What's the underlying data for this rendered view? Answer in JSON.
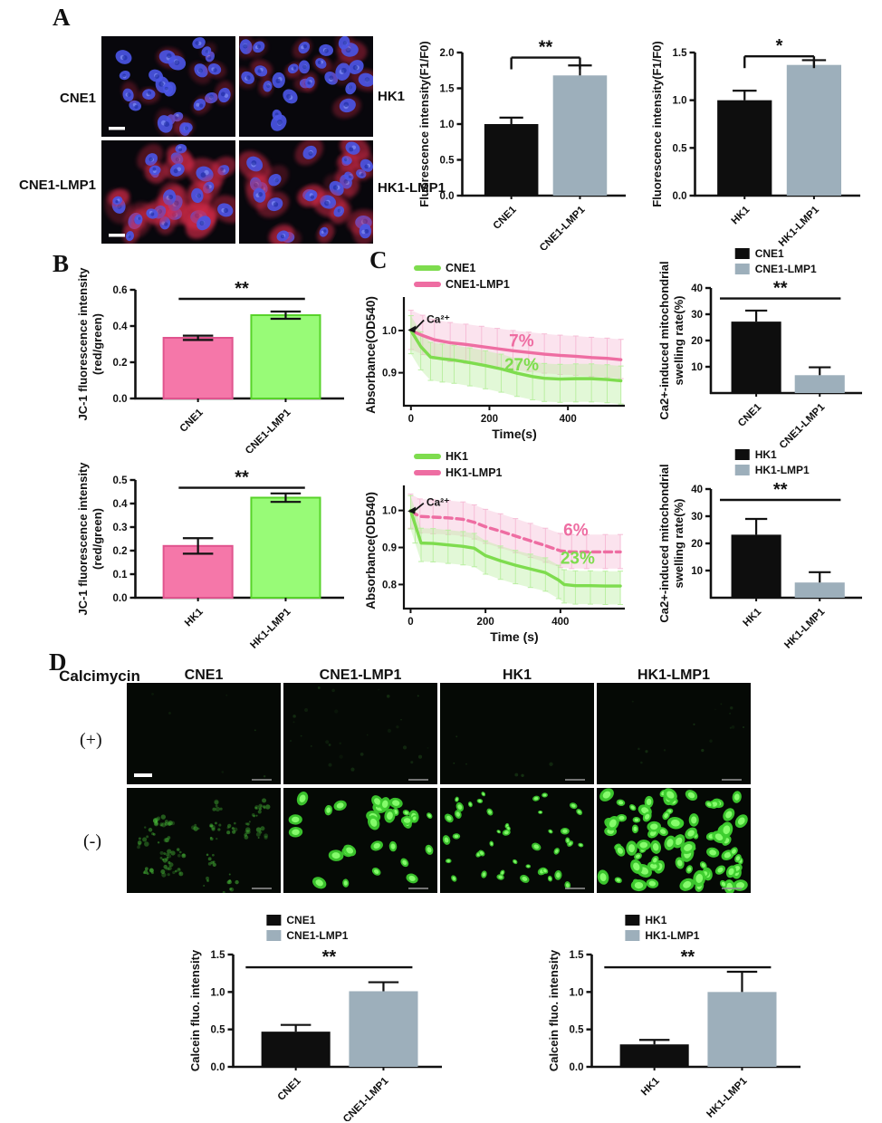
{
  "colors": {
    "black": "#0e0e0e",
    "gray": "#9dafbb",
    "pink_bar": "#f577a9",
    "pink_bar_border": "#e0548e",
    "green_bar": "#98fb77",
    "green_bar_border": "#58d32a",
    "green": "#7edc4e",
    "pink": "#ee6da2",
    "band_green": "#b9efa0",
    "band_pink": "#f6bcd6",
    "micro_blue": "#4a55e4",
    "micro_red": "#d62949",
    "fluo_green": "#4ce93b"
  },
  "panelA": {
    "label": "A",
    "micrographs": [
      {
        "label": "CNE1",
        "red_level": 0.35,
        "seed": 11,
        "scalebar": true
      },
      {
        "label": "HK1",
        "red_level": 0.45,
        "seed": 22,
        "scalebar": false
      },
      {
        "label": "CNE1-LMP1",
        "red_level": 0.9,
        "seed": 33,
        "scalebar": true
      },
      {
        "label": "HK1-LMP1",
        "red_level": 0.8,
        "seed": 44,
        "scalebar": false
      }
    ]
  },
  "panelB": {
    "label": "B"
  },
  "panelC": {
    "label": "C"
  },
  "panelD": {
    "label": "D",
    "row_header": "Calcimycin",
    "columns": [
      "CNE1",
      "CNE1-LMP1",
      "HK1",
      "HK1-LMP1"
    ],
    "rows": [
      {
        "label": "(+)",
        "cells": [
          {
            "mode": "plus",
            "count": 2,
            "seed": 51,
            "scalebar": true
          },
          {
            "mode": "plus",
            "count": 9,
            "seed": 52,
            "scalebar": false
          },
          {
            "mode": "plus",
            "count": 2,
            "seed": 53,
            "scalebar": false
          },
          {
            "mode": "plus",
            "count": 5,
            "seed": 54,
            "scalebar": false
          }
        ]
      },
      {
        "label": "(-)",
        "cells": [
          {
            "mode": "minus",
            "count": 26,
            "bright": 0.45,
            "size": 0.8,
            "cluster": true,
            "seed": 61,
            "scalebar": false
          },
          {
            "mode": "minus",
            "count": 30,
            "bright": 0.95,
            "size": 1.15,
            "cluster": false,
            "seed": 62,
            "scalebar": false
          },
          {
            "mode": "minus",
            "count": 42,
            "bright": 0.85,
            "size": 0.75,
            "cluster": false,
            "seed": 63,
            "scalebar": false
          },
          {
            "mode": "minus",
            "count": 82,
            "bright": 1.0,
            "size": 1.25,
            "cluster": false,
            "seed": 64,
            "scalebar": false
          }
        ]
      }
    ]
  },
  "chart_data": [
    {
      "id": "chartA1",
      "type": "bar",
      "categories": [
        "CNE1",
        "CNE1-LMP1"
      ],
      "values": [
        1.0,
        1.68
      ],
      "errors": [
        0.09,
        0.14
      ],
      "bar_colors": [
        "black",
        "gray"
      ],
      "ylabel": [
        "Fluorescence intensity(F1/F0)"
      ],
      "yticks": [
        0,
        0.5,
        1.0,
        1.5,
        2.0
      ],
      "ytick_labels": [
        "0.0",
        "0.5",
        "1.0",
        "1.5",
        "2.0"
      ],
      "ylim": [
        0,
        2.0
      ],
      "sig": "**",
      "sig_y": 1.93,
      "sig_style": "endcaps"
    },
    {
      "id": "chartA2",
      "type": "bar",
      "categories": [
        "HK1",
        "HK1-LMP1"
      ],
      "values": [
        1.0,
        1.37
      ],
      "errors": [
        0.1,
        0.05
      ],
      "bar_colors": [
        "black",
        "gray"
      ],
      "ylabel": [
        "Fluorescence intensity(F1/F0)"
      ],
      "yticks": [
        0,
        0.5,
        1.0,
        1.5
      ],
      "ytick_labels": [
        "0.0",
        "0.5",
        "1.0",
        "1.5"
      ],
      "ylim": [
        0,
        1.5
      ],
      "sig": "*",
      "sig_y": 1.46,
      "sig_style": "endcaps"
    },
    {
      "id": "chartB1",
      "type": "bar",
      "categories": [
        "CNE1",
        "CNE1-LMP1"
      ],
      "values": [
        0.335,
        0.46
      ],
      "errors": [
        0.012,
        0.02
      ],
      "bar_colors": [
        "pink_bar",
        "green_bar"
      ],
      "err_both": true,
      "ylabel": [
        "JC-1 fluorescence intensity",
        "(red/green)"
      ],
      "yticks": [
        0,
        0.2,
        0.4,
        0.6
      ],
      "ytick_labels": [
        "0.0",
        "0.2",
        "0.4",
        "0.6"
      ],
      "ylim": [
        0,
        0.6
      ],
      "sig": "**",
      "sig_y": 0.55,
      "sig_style": "plain"
    },
    {
      "id": "chartB2",
      "type": "bar",
      "categories": [
        "HK1",
        "HK1-LMP1"
      ],
      "values": [
        0.22,
        0.425
      ],
      "errors": [
        0.033,
        0.018
      ],
      "bar_colors": [
        "pink_bar",
        "green_bar"
      ],
      "err_both": true,
      "ylabel": [
        "JC-1 fluorescence intensity",
        "(red/green)"
      ],
      "yticks": [
        0,
        0.1,
        0.2,
        0.3,
        0.4,
        0.5
      ],
      "ytick_labels": [
        "0.0",
        "0.1",
        "0.2",
        "0.3",
        "0.4",
        "0.5"
      ],
      "ylim": [
        0,
        0.5
      ],
      "sig": "**",
      "sig_y": 0.467,
      "sig_style": "plain"
    },
    {
      "id": "chartC1",
      "type": "line",
      "xlabel": "Time(s)",
      "ylabel": [
        "Absorbance(OD540)"
      ],
      "xticks": [
        0,
        200,
        400
      ],
      "xtick_labels": [
        "0",
        "200",
        "400"
      ],
      "xlim": [
        -18,
        545
      ],
      "yticks": [
        0.9,
        1.0
      ],
      "ytick_labels": [
        "0.9",
        "1.0"
      ],
      "ylim": [
        0.822,
        1.062
      ],
      "legend": [
        {
          "label": "CNE1",
          "color": "green"
        },
        {
          "label": "CNE1-LMP1",
          "color": "pink"
        }
      ],
      "series": [
        {
          "name": "CNE1-LMP1",
          "color": "pink",
          "band": "band_pink",
          "band_up": 0.048,
          "band_dn": 0.045,
          "dashed": false,
          "points": [
            [
              0,
              1.0
            ],
            [
              30,
              0.988
            ],
            [
              60,
              0.978
            ],
            [
              100,
              0.971
            ],
            [
              140,
              0.967
            ],
            [
              180,
              0.962
            ],
            [
              220,
              0.957
            ],
            [
              260,
              0.952
            ],
            [
              300,
              0.948
            ],
            [
              340,
              0.944
            ],
            [
              380,
              0.941
            ],
            [
              420,
              0.939
            ],
            [
              460,
              0.936
            ],
            [
              500,
              0.934
            ],
            [
              535,
              0.931
            ]
          ]
        },
        {
          "name": "CNE1",
          "color": "green",
          "band": "band_green",
          "band_up": 0.035,
          "band_dn": 0.055,
          "dashed": false,
          "points": [
            [
              0,
              1.0
            ],
            [
              25,
              0.962
            ],
            [
              50,
              0.937
            ],
            [
              80,
              0.933
            ],
            [
              110,
              0.93
            ],
            [
              150,
              0.924
            ],
            [
              190,
              0.917
            ],
            [
              230,
              0.909
            ],
            [
              270,
              0.899
            ],
            [
              310,
              0.891
            ],
            [
              340,
              0.887
            ],
            [
              380,
              0.885
            ],
            [
              420,
              0.886
            ],
            [
              460,
              0.886
            ],
            [
              500,
              0.884
            ],
            [
              535,
              0.881
            ]
          ]
        }
      ],
      "annotations": [
        {
          "text": "Ca²⁺",
          "x": 40,
          "y": 1.018,
          "color": "#141414",
          "size": 12,
          "arrow": {
            "tx": -8,
            "ty": 1.001
          }
        },
        {
          "text": "7%",
          "x": 250,
          "y": 0.962,
          "color": "pink",
          "size": 19
        },
        {
          "text": "27%",
          "x": 238,
          "y": 0.906,
          "color": "green",
          "size": 19
        }
      ]
    },
    {
      "id": "chartC2",
      "type": "line",
      "xlabel": "Time (s)",
      "ylabel": [
        "Absorbance(OD540)"
      ],
      "xticks": [
        0,
        200,
        400
      ],
      "xtick_labels": [
        "0",
        "200",
        "400"
      ],
      "xlim": [
        -18,
        572
      ],
      "yticks": [
        0.8,
        0.9,
        1.0
      ],
      "ytick_labels": [
        "0.8",
        "0.9",
        "1.0"
      ],
      "ylim": [
        0.735,
        1.048
      ],
      "legend": [
        {
          "label": "HK1",
          "color": "green"
        },
        {
          "label": "HK1-LMP1",
          "color": "pink"
        }
      ],
      "series": [
        {
          "name": "HK1-LMP1",
          "color": "pink",
          "band": "band_pink",
          "band_up": 0.047,
          "band_dn": 0.045,
          "dashed": true,
          "points": [
            [
              0,
              0.997
            ],
            [
              25,
              0.984
            ],
            [
              60,
              0.982
            ],
            [
              100,
              0.98
            ],
            [
              140,
              0.976
            ],
            [
              170,
              0.968
            ],
            [
              200,
              0.956
            ],
            [
              240,
              0.944
            ],
            [
              280,
              0.931
            ],
            [
              320,
              0.918
            ],
            [
              360,
              0.905
            ],
            [
              400,
              0.891
            ],
            [
              430,
              0.888
            ],
            [
              470,
              0.888
            ],
            [
              520,
              0.888
            ],
            [
              560,
              0.888
            ]
          ]
        },
        {
          "name": "HK1",
          "color": "green",
          "band": "band_green",
          "band_up": 0.04,
          "band_dn": 0.05,
          "dashed": false,
          "points": [
            [
              0,
              1.0
            ],
            [
              12,
              0.962
            ],
            [
              28,
              0.912
            ],
            [
              60,
              0.911
            ],
            [
              100,
              0.907
            ],
            [
              140,
              0.903
            ],
            [
              170,
              0.898
            ],
            [
              200,
              0.878
            ],
            [
              240,
              0.864
            ],
            [
              280,
              0.852
            ],
            [
              320,
              0.842
            ],
            [
              360,
              0.832
            ],
            [
              395,
              0.812
            ],
            [
              410,
              0.8
            ],
            [
              440,
              0.797
            ],
            [
              480,
              0.797
            ],
            [
              520,
              0.796
            ],
            [
              560,
              0.796
            ]
          ]
        }
      ],
      "annotations": [
        {
          "text": "Ca²⁺",
          "x": 42,
          "y": 1.012,
          "color": "#141414",
          "size": 12,
          "arrow": {
            "tx": -8,
            "ty": 0.998
          }
        },
        {
          "text": "6%",
          "x": 408,
          "y": 0.932,
          "color": "pink",
          "size": 19
        },
        {
          "text": "23%",
          "x": 400,
          "y": 0.856,
          "color": "green",
          "size": 19
        }
      ]
    },
    {
      "id": "chartC3",
      "type": "bar",
      "categories": [
        "CNE1",
        "CNE1-LMP1"
      ],
      "values": [
        27.2,
        6.8
      ],
      "errors": [
        4.2,
        3.0
      ],
      "bar_colors": [
        "black",
        "gray"
      ],
      "legend": [
        {
          "label": "CNE1",
          "color": "black"
        },
        {
          "label": "CNE1-LMP1",
          "color": "gray"
        }
      ],
      "ylabel": [
        "Ca2+-induced mitochondrial",
        "swelling rate(%)"
      ],
      "yticks": [
        10,
        20,
        30,
        40
      ],
      "ytick_labels": [
        "10",
        "20",
        "30",
        "40"
      ],
      "ylim": [
        0,
        40
      ],
      "sig": "**",
      "sig_y": 36,
      "sig_style": "wide"
    },
    {
      "id": "chartC4",
      "type": "bar",
      "categories": [
        "HK1",
        "HK1-LMP1"
      ],
      "values": [
        23.2,
        5.6
      ],
      "errors": [
        5.8,
        3.8
      ],
      "bar_colors": [
        "black",
        "gray"
      ],
      "legend": [
        {
          "label": "HK1",
          "color": "black"
        },
        {
          "label": "HK1-LMP1",
          "color": "gray"
        }
      ],
      "ylabel": [
        "Ca2+-induced mitochondrial",
        "swelling rate(%)"
      ],
      "yticks": [
        10,
        20,
        30,
        40
      ],
      "ytick_labels": [
        "10",
        "20",
        "30",
        "40"
      ],
      "ylim": [
        0,
        40
      ],
      "sig": "**",
      "sig_y": 36,
      "sig_style": "wide"
    },
    {
      "id": "chartD1",
      "type": "bar",
      "categories": [
        "CNE1",
        "CNE1-LMP1"
      ],
      "values": [
        0.47,
        1.01
      ],
      "errors": [
        0.09,
        0.12
      ],
      "bar_colors": [
        "black",
        "gray"
      ],
      "legend": [
        {
          "label": "CNE1",
          "color": "black"
        },
        {
          "label": "CNE1-LMP1",
          "color": "gray"
        }
      ],
      "ylabel": [
        "Calcein fluo. intensity"
      ],
      "yticks": [
        0,
        0.5,
        1.0,
        1.5
      ],
      "ytick_labels": [
        "0.0",
        "0.5",
        "1.0",
        "1.5"
      ],
      "ylim": [
        0,
        1.5
      ],
      "sig": "**",
      "sig_y": 1.33,
      "sig_style": "wide"
    },
    {
      "id": "chartD2",
      "type": "bar",
      "categories": [
        "HK1",
        "HK1-LMP1"
      ],
      "values": [
        0.3,
        1.0
      ],
      "errors": [
        0.06,
        0.27
      ],
      "bar_colors": [
        "black",
        "gray"
      ],
      "legend": [
        {
          "label": "HK1",
          "color": "black"
        },
        {
          "label": "HK1-LMP1",
          "color": "gray"
        }
      ],
      "ylabel": [
        "Calcein fluo. intensity"
      ],
      "yticks": [
        0,
        0.5,
        1.0,
        1.5
      ],
      "ytick_labels": [
        "0.0",
        "0.5",
        "1.0",
        "1.5"
      ],
      "ylim": [
        0,
        1.5
      ],
      "sig": "**",
      "sig_y": 1.33,
      "sig_style": "wide"
    }
  ]
}
